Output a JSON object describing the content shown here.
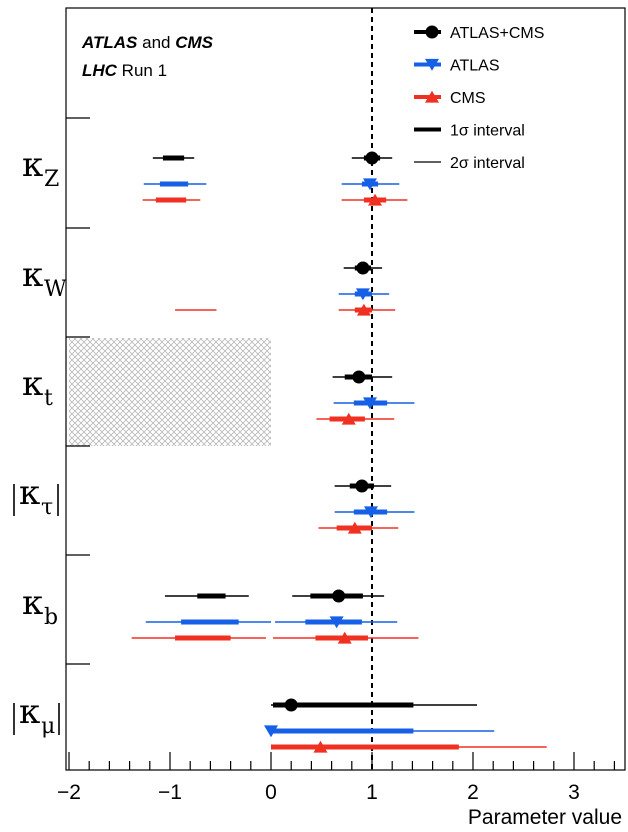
{
  "chart_data": {
    "type": "scatter",
    "header": {
      "line1": [
        {
          "text": "ATLAS",
          "style": "bold-italic"
        },
        {
          "text": " and ",
          "style": "normal"
        },
        {
          "text": "CMS",
          "style": "bold-italic"
        }
      ],
      "line2": [
        {
          "text": "LHC",
          "style": "bold-italic"
        },
        {
          "text": " Run 1",
          "style": "normal"
        }
      ]
    },
    "xlabel": "Parameter value",
    "xlim": [
      -2,
      3.5
    ],
    "xticks": [
      {
        "value": -2,
        "label": "−2"
      },
      {
        "value": -1,
        "label": "−1"
      },
      {
        "value": 0,
        "label": "0"
      },
      {
        "value": 1,
        "label": "1"
      },
      {
        "value": 2,
        "label": "2"
      },
      {
        "value": 3,
        "label": "3"
      }
    ],
    "reference_line": 1,
    "excluded_region": {
      "parameter": "kt",
      "x_from": -2,
      "x_to": 0
    },
    "parameters": [
      {
        "id": "kZ",
        "base": "κ",
        "sub": "Z",
        "abs": false
      },
      {
        "id": "kW",
        "base": "κ",
        "sub": "W",
        "abs": false
      },
      {
        "id": "kt",
        "base": "κ",
        "sub": "t",
        "abs": false
      },
      {
        "id": "ktau",
        "base": "κ",
        "sub": "τ",
        "abs": true
      },
      {
        "id": "kb",
        "base": "κ",
        "sub": "b",
        "abs": false
      },
      {
        "id": "kmu",
        "base": "κ",
        "sub": "μ",
        "abs": true
      }
    ],
    "legend": [
      {
        "name": "ATLAS+CMS",
        "marker": "circle",
        "color": "#000000"
      },
      {
        "name": "ATLAS",
        "marker": "triangle-down",
        "color": "#1560e6"
      },
      {
        "name": "CMS",
        "marker": "triangle-up",
        "color": "#f03020"
      },
      {
        "name": "1σ interval",
        "marker": "thick-line",
        "color": "#000000"
      },
      {
        "name": "2σ interval",
        "marker": "thin-line",
        "color": "#000000"
      }
    ],
    "series": [
      {
        "name": "ATLAS+CMS",
        "color": "#000000",
        "marker": "circle",
        "points": [
          {
            "param": "kZ",
            "central": 1.0,
            "sigma1": [
              [
                0.92,
                1.08
              ]
            ],
            "sigma2": [
              [
                0.8,
                1.2
              ]
            ]
          },
          {
            "param": "kZ",
            "central": null,
            "sigma1": [
              [
                -1.07,
                -0.86
              ]
            ],
            "sigma2": [
              [
                -1.17,
                -0.76
              ]
            ]
          },
          {
            "param": "kW",
            "central": 0.91,
            "sigma1": [
              [
                0.83,
                0.99
              ]
            ],
            "sigma2": [
              [
                0.72,
                1.1
              ]
            ]
          },
          {
            "param": "kt",
            "central": 0.87,
            "sigma1": [
              [
                0.73,
                1.0
              ]
            ],
            "sigma2": [
              [
                0.61,
                1.2
              ]
            ]
          },
          {
            "param": "ktau",
            "central": 0.9,
            "sigma1": [
              [
                0.78,
                1.02
              ]
            ],
            "sigma2": [
              [
                0.63,
                1.19
              ]
            ]
          },
          {
            "param": "kb",
            "central": 0.67,
            "sigma1": [
              [
                0.39,
                0.91
              ]
            ],
            "sigma2": [
              [
                0.21,
                1.12
              ]
            ]
          },
          {
            "param": "kb",
            "central": null,
            "sigma1": [
              [
                -0.73,
                -0.45
              ]
            ],
            "sigma2": [
              [
                -1.05,
                -0.22
              ]
            ]
          },
          {
            "param": "kmu",
            "central": 0.2,
            "sigma1": [
              [
                0.02,
                1.41
              ]
            ],
            "sigma2": [
              [
                0.0,
                2.04
              ]
            ]
          }
        ]
      },
      {
        "name": "ATLAS",
        "color": "#1560e6",
        "marker": "triangle-down",
        "points": [
          {
            "param": "kZ",
            "central": 0.98,
            "sigma1": [
              [
                0.9,
                1.06
              ]
            ],
            "sigma2": [
              [
                0.7,
                1.27
              ]
            ]
          },
          {
            "param": "kZ",
            "central": null,
            "sigma1": [
              [
                -1.1,
                -0.82
              ]
            ],
            "sigma2": [
              [
                -1.26,
                -0.64
              ]
            ]
          },
          {
            "param": "kW",
            "central": 0.91,
            "sigma1": [
              [
                0.83,
                1.0
              ]
            ],
            "sigma2": [
              [
                0.67,
                1.17
              ]
            ]
          },
          {
            "param": "kt",
            "central": 0.98,
            "sigma1": [
              [
                0.82,
                1.15
              ]
            ],
            "sigma2": [
              [
                0.62,
                1.42
              ]
            ]
          },
          {
            "param": "ktau",
            "central": 0.99,
            "sigma1": [
              [
                0.82,
                1.15
              ]
            ],
            "sigma2": [
              [
                0.63,
                1.42
              ]
            ]
          },
          {
            "param": "kb",
            "central": 0.65,
            "sigma1": [
              [
                0.34,
                0.9
              ]
            ],
            "sigma2": [
              [
                0.04,
                1.25
              ]
            ]
          },
          {
            "param": "kb",
            "central": null,
            "sigma1": [
              [
                -0.89,
                -0.32
              ]
            ],
            "sigma2": [
              [
                -1.24,
                0.0
              ]
            ]
          },
          {
            "param": "kmu",
            "central": 0.0,
            "sigma1": [
              [
                0.0,
                1.41
              ]
            ],
            "sigma2": [
              [
                0.0,
                2.21
              ]
            ]
          }
        ]
      },
      {
        "name": "CMS",
        "color": "#f03020",
        "marker": "triangle-up",
        "points": [
          {
            "param": "kZ",
            "central": 1.03,
            "sigma1": [
              [
                0.92,
                1.14
              ]
            ],
            "sigma2": [
              [
                0.7,
                1.35
              ]
            ]
          },
          {
            "param": "kZ",
            "central": null,
            "sigma1": [
              [
                -1.14,
                -0.84
              ]
            ],
            "sigma2": [
              [
                -1.27,
                -0.7
              ]
            ]
          },
          {
            "param": "kW",
            "central": 0.92,
            "sigma1": [
              [
                0.83,
                1.0
              ]
            ],
            "sigma2": [
              [
                0.67,
                1.23
              ]
            ]
          },
          {
            "param": "kW",
            "central": null,
            "sigma1": [],
            "sigma2": [
              [
                -0.95,
                -0.54
              ]
            ]
          },
          {
            "param": "kt",
            "central": 0.77,
            "sigma1": [
              [
                0.58,
                0.93
              ]
            ],
            "sigma2": [
              [
                0.45,
                1.22
              ]
            ]
          },
          {
            "param": "ktau",
            "central": 0.83,
            "sigma1": [
              [
                0.65,
                1.0
              ]
            ],
            "sigma2": [
              [
                0.47,
                1.26
              ]
            ]
          },
          {
            "param": "kb",
            "central": 0.73,
            "sigma1": [
              [
                0.44,
                0.96
              ]
            ],
            "sigma2": [
              [
                0.02,
                1.46
              ]
            ]
          },
          {
            "param": "kb",
            "central": null,
            "sigma1": [
              [
                -0.95,
                -0.4
              ]
            ],
            "sigma2": [
              [
                -1.38,
                -0.05
              ]
            ]
          },
          {
            "param": "kmu",
            "central": 0.49,
            "sigma1": [
              [
                0.0,
                1.86
              ]
            ],
            "sigma2": [
              [
                0.0,
                2.73
              ]
            ]
          }
        ]
      }
    ]
  }
}
